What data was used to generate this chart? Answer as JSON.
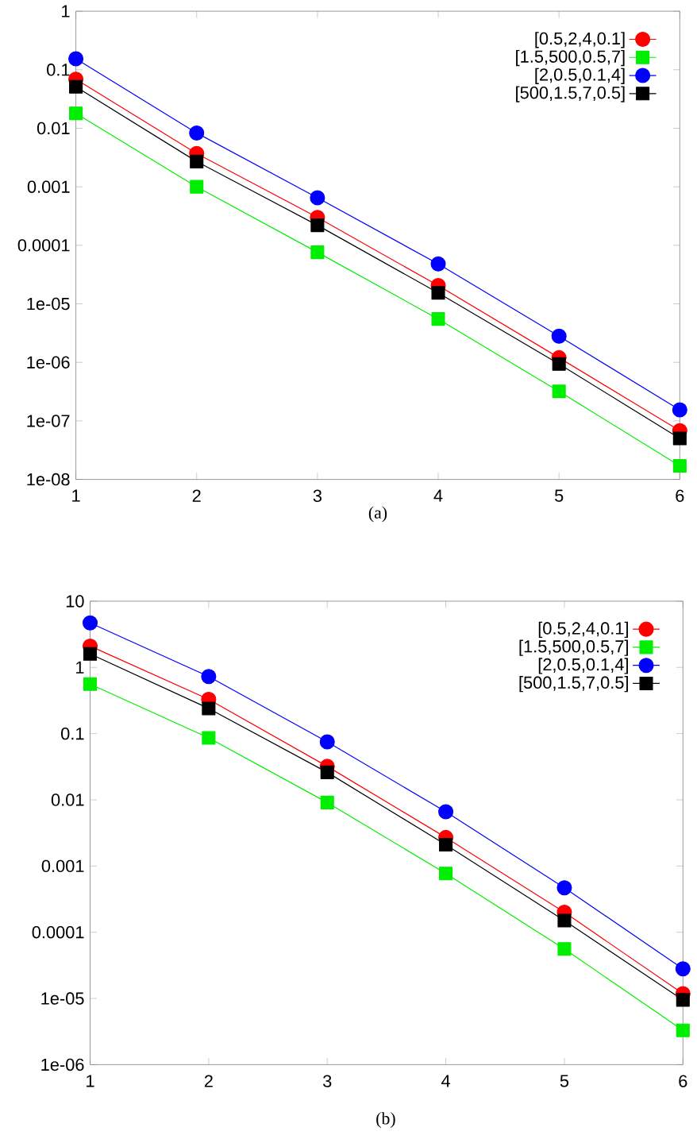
{
  "chart_data": [
    {
      "type": "line",
      "x": [
        1,
        2,
        3,
        4,
        5,
        6
      ],
      "xlim": [
        1,
        6
      ],
      "xticks": [
        1,
        2,
        3,
        4,
        5,
        6
      ],
      "ylim": [
        1e-08,
        1
      ],
      "log": "y",
      "yticks": [
        {
          "value": 1e-08,
          "label": "1e-08"
        },
        {
          "value": 1e-07,
          "label": "1e-07"
        },
        {
          "value": 1e-06,
          "label": "1e-06"
        },
        {
          "value": 1e-05,
          "label": "1e-05"
        },
        0.0001,
        0.001,
        0.01,
        0.1,
        1
      ],
      "legend": "top right",
      "grid": false,
      "line_style": "solid",
      "series": [
        {
          "name": "[0.5,2,4,0.1]",
          "color": "#ff0000",
          "marker": "circle",
          "values": [
            0.069,
            0.0037,
            0.0003,
            2.05e-05,
            1.2e-06,
            6.8e-08
          ]
        },
        {
          "name": "[1.5,500,0.5,7]",
          "color": "#00ee00",
          "marker": "square",
          "values": [
            0.018,
            0.001,
            7.6e-05,
            5.5e-06,
            3.2e-07,
            1.7e-08
          ]
        },
        {
          "name": "[2,0.5,0.1,4]",
          "color": "#0000ff",
          "marker": "circle",
          "values": [
            0.154,
            0.0083,
            0.00065,
            4.8e-05,
            2.8e-06,
            1.54e-07
          ]
        },
        {
          "name": "[500,1.5,7,0.5]",
          "color": "#000000",
          "marker": "square",
          "values": [
            0.051,
            0.0027,
            0.00022,
            1.54e-05,
            9.4e-07,
            5e-08
          ]
        }
      ],
      "annotations": [
        "(a)"
      ]
    },
    {
      "type": "line",
      "x": [
        1,
        2,
        3,
        4,
        5,
        6
      ],
      "xlim": [
        1,
        6
      ],
      "xticks": [
        1,
        2,
        3,
        4,
        5,
        6
      ],
      "ylim": [
        1e-06,
        10
      ],
      "log": "y",
      "yticks": [
        {
          "value": 1e-06,
          "label": "1e-06"
        },
        {
          "value": 1e-05,
          "label": "1e-05"
        },
        0.0001,
        0.001,
        0.01,
        0.1,
        1,
        10
      ],
      "legend": "top right",
      "grid": false,
      "line_style": "solid",
      "series": [
        {
          "name": "[0.5,2,4,0.1]",
          "color": "#ff0000",
          "marker": "circle",
          "values": [
            2.1,
            0.33,
            0.032,
            0.0027,
            0.0002,
            1.18e-05
          ]
        },
        {
          "name": "[1.5,500,0.5,7]",
          "color": "#00ee00",
          "marker": "square",
          "values": [
            0.56,
            0.086,
            0.0091,
            0.00077,
            5.6e-05,
            3.3e-06
          ]
        },
        {
          "name": "[2,0.5,0.1,4]",
          "color": "#0000ff",
          "marker": "circle",
          "values": [
            4.7,
            0.73,
            0.075,
            0.0066,
            0.00047,
            2.8e-05
          ]
        },
        {
          "name": "[500,1.5,7,0.5]",
          "color": "#000000",
          "marker": "square",
          "values": [
            1.6,
            0.24,
            0.026,
            0.0021,
            0.00015,
            9.5e-06
          ]
        }
      ],
      "annotations": [
        "(b)"
      ]
    }
  ]
}
